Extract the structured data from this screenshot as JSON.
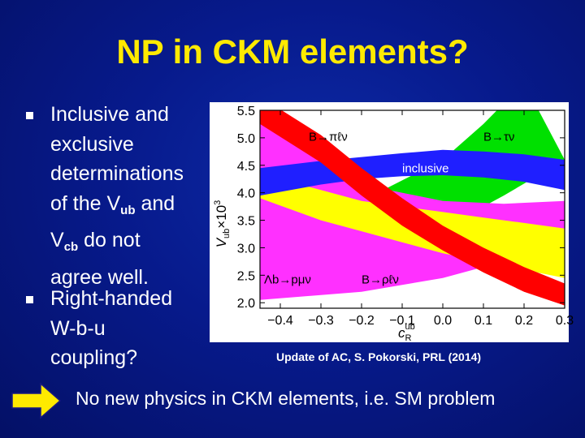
{
  "slide": {
    "title": "NP in CKM elements?",
    "bullets": [
      {
        "line1": "Inclusive and",
        "line2": "exclusive",
        "line3": "determinations",
        "line4_a": "of the V",
        "line4_sub": "ub",
        "line4_b": " and",
        "line5_a": "V",
        "line5_sub": "cb",
        "line5_b": " do not",
        "line6": "agree well."
      },
      {
        "line1": "Right-handed",
        "line2": "W-b-u",
        "line3": "coupling?"
      }
    ],
    "citation": "Update of AC, S. Pokorski, PRL (2014)",
    "footer": "No new physics in CKM elements, i.e. SM problem"
  },
  "colors": {
    "title": "#ffea00",
    "arrow": "#ffea00"
  },
  "chart_data": {
    "type": "area",
    "title": "",
    "xlabel_main": "c",
    "xlabel_sub": "R",
    "xlabel_sup": "ub",
    "ylabel_main": "V",
    "ylabel_sub": "ub",
    "ylabel_suffix": "×10",
    "ylabel_sup": "3",
    "xlim": [
      -0.45,
      0.3
    ],
    "ylim": [
      1.9,
      5.5
    ],
    "xticks": [
      "−0.4",
      "−0.3",
      "−0.2",
      "−0.1",
      "0.0",
      "0.1",
      "0.2",
      "0.3"
    ],
    "xtick_values": [
      -0.4,
      -0.3,
      -0.2,
      -0.1,
      0.0,
      0.1,
      0.2,
      0.3
    ],
    "yticks": [
      "2.0",
      "2.5",
      "3.0",
      "3.5",
      "4.0",
      "4.5",
      "5.0",
      "5.5"
    ],
    "ytick_values": [
      2.0,
      2.5,
      3.0,
      3.5,
      4.0,
      4.5,
      5.0,
      5.5
    ],
    "bands": [
      {
        "name": "B→τν",
        "color": "#00e000",
        "lower": [
          [
            -0.45,
            2.55
          ],
          [
            -0.2,
            2.9
          ],
          [
            0.0,
            3.35
          ],
          [
            0.15,
            3.95
          ],
          [
            0.3,
            4.6
          ]
        ],
        "upper": [
          [
            -0.45,
            3.4
          ],
          [
            -0.2,
            3.85
          ],
          [
            0.0,
            4.6
          ],
          [
            0.1,
            5.25
          ],
          [
            0.2,
            6.0
          ]
        ]
      },
      {
        "name": "Λb→pμν",
        "color": "#ff30ff",
        "lower": [
          [
            -0.45,
            2.05
          ],
          [
            -0.2,
            2.2
          ],
          [
            0.0,
            2.45
          ],
          [
            0.15,
            2.75
          ],
          [
            0.3,
            3.05
          ]
        ],
        "upper": [
          [
            -0.45,
            5.75
          ],
          [
            -0.3,
            4.7
          ],
          [
            -0.2,
            4.15
          ],
          [
            0.0,
            3.85
          ],
          [
            0.15,
            3.8
          ],
          [
            0.3,
            3.85
          ]
        ]
      },
      {
        "name": "B→ρℓν",
        "color": "#ffff00",
        "lower": [
          [
            -0.45,
            3.9
          ],
          [
            -0.3,
            3.5
          ],
          [
            -0.2,
            3.3
          ],
          [
            -0.1,
            3.1
          ],
          [
            0.0,
            2.9
          ],
          [
            0.1,
            2.75
          ],
          [
            0.2,
            2.6
          ],
          [
            0.3,
            2.45
          ]
        ],
        "upper": [
          [
            -0.45,
            4.35
          ],
          [
            -0.3,
            4.05
          ],
          [
            -0.2,
            3.85
          ],
          [
            -0.1,
            3.75
          ],
          [
            0.0,
            3.65
          ],
          [
            0.1,
            3.55
          ],
          [
            0.2,
            3.45
          ],
          [
            0.3,
            3.35
          ]
        ]
      },
      {
        "name": "inclusive",
        "color": "#1f1fff",
        "lower": [
          [
            -0.45,
            3.95
          ],
          [
            -0.3,
            4.15
          ],
          [
            -0.2,
            4.25
          ],
          [
            -0.1,
            4.3
          ],
          [
            0.0,
            4.32
          ],
          [
            0.1,
            4.28
          ],
          [
            0.2,
            4.2
          ],
          [
            0.3,
            4.05
          ]
        ],
        "upper": [
          [
            -0.45,
            4.45
          ],
          [
            -0.3,
            4.58
          ],
          [
            -0.2,
            4.65
          ],
          [
            -0.1,
            4.72
          ],
          [
            0.0,
            4.78
          ],
          [
            0.1,
            4.75
          ],
          [
            0.2,
            4.7
          ],
          [
            0.3,
            4.6
          ]
        ]
      },
      {
        "name": "B→πℓν",
        "color": "#ff0000",
        "lower": [
          [
            -0.45,
            5.25
          ],
          [
            -0.3,
            4.55
          ],
          [
            -0.2,
            3.95
          ],
          [
            -0.1,
            3.4
          ],
          [
            0.0,
            2.95
          ],
          [
            0.1,
            2.55
          ],
          [
            0.2,
            2.2
          ],
          [
            0.3,
            1.95
          ]
        ],
        "upper": [
          [
            -0.45,
            5.75
          ],
          [
            -0.3,
            5.05
          ],
          [
            -0.2,
            4.45
          ],
          [
            -0.1,
            3.9
          ],
          [
            0.0,
            3.4
          ],
          [
            0.1,
            3.0
          ],
          [
            0.2,
            2.65
          ],
          [
            0.3,
            2.35
          ]
        ]
      }
    ],
    "annotations": [
      {
        "text": "B→πℓν",
        "x": -0.33,
        "y": 4.95
      },
      {
        "text": "B→τν",
        "x": 0.1,
        "y": 4.95
      },
      {
        "text": "inclusive",
        "x": -0.1,
        "y": 4.37
      },
      {
        "text": "Λb→pμν",
        "x": -0.44,
        "y": 2.35
      },
      {
        "text": "B→ρℓν",
        "x": -0.2,
        "y": 2.35
      }
    ]
  }
}
